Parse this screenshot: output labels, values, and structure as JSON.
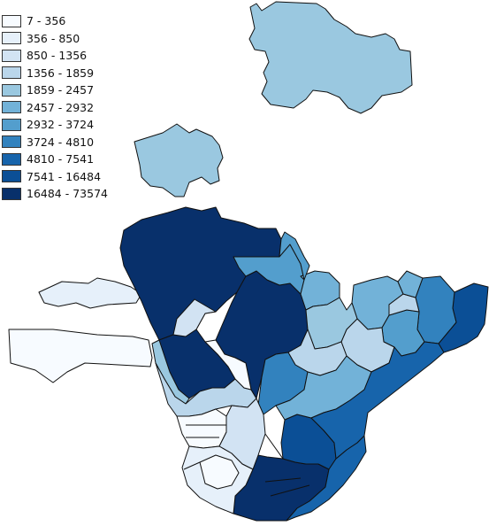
{
  "legend": {
    "classes": [
      {
        "label": "7 - 356",
        "color": "#f7fbff"
      },
      {
        "label": "356 - 850",
        "color": "#e6f0fa"
      },
      {
        "label": "850 - 1356",
        "color": "#d2e3f3"
      },
      {
        "label": "1356 - 1859",
        "color": "#bad6eb"
      },
      {
        "label": "1859 - 2457",
        "color": "#9ac8e0"
      },
      {
        "label": "2457 - 2932",
        "color": "#72b2d8"
      },
      {
        "label": "2932 - 3724",
        "color": "#539ecd"
      },
      {
        "label": "3724 - 4810",
        "color": "#3282be"
      },
      {
        "label": "4810 - 7541",
        "color": "#1764ab"
      },
      {
        "label": "7541 - 16484",
        "color": "#0b4f96"
      },
      {
        "label": "16484 - 73574",
        "color": "#08306b"
      }
    ]
  },
  "regions": [
    {
      "id": "north-tract",
      "class": 4
    },
    {
      "id": "northwest-tract",
      "class": 4
    },
    {
      "id": "west-tract-far",
      "class": 0
    },
    {
      "id": "west-tract-thin",
      "class": 1
    },
    {
      "id": "central-large-tract",
      "class": 10
    },
    {
      "id": "central-east-tract",
      "class": 10
    },
    {
      "id": "southwest-tract-a",
      "class": 10
    },
    {
      "id": "south-tract-a",
      "class": 10
    },
    {
      "id": "south-tract-b",
      "class": 9
    },
    {
      "id": "southeast-coast-tract",
      "class": 8
    },
    {
      "id": "east-coast-tract",
      "class": 9
    },
    {
      "id": "east-tract-a",
      "class": 7
    },
    {
      "id": "east-tract-b",
      "class": 6
    },
    {
      "id": "east-tract-c",
      "class": 5
    },
    {
      "id": "east-tract-d",
      "class": 3
    },
    {
      "id": "north-central-tract",
      "class": 6
    },
    {
      "id": "north-central-tract-b",
      "class": 5
    },
    {
      "id": "central-south-tract-a",
      "class": 4
    },
    {
      "id": "central-south-tract-b",
      "class": 3
    },
    {
      "id": "central-south-tract-c",
      "class": 7
    },
    {
      "id": "central-south-tract-d",
      "class": 5
    },
    {
      "id": "west-column-a",
      "class": 4
    },
    {
      "id": "west-column-b",
      "class": 3
    },
    {
      "id": "west-column-c",
      "class": 0
    },
    {
      "id": "west-column-d",
      "class": 2
    },
    {
      "id": "south-west-tract",
      "class": 1
    },
    {
      "id": "south-west-tract-b",
      "class": 0
    },
    {
      "id": "mid-tract-a",
      "class": 2
    },
    {
      "id": "mid-tract-b",
      "class": 0
    },
    {
      "id": "mid-tract-c",
      "class": 6
    },
    {
      "id": "mid-tract-d",
      "class": 8
    },
    {
      "id": "mid-tract-e",
      "class": 3
    },
    {
      "id": "mid-tract-f",
      "class": 5
    }
  ]
}
